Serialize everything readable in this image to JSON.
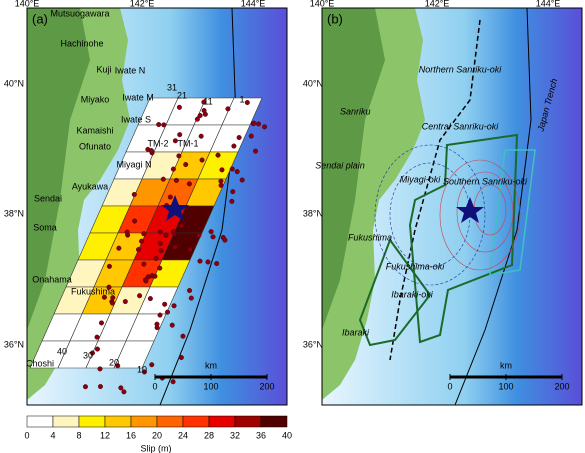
{
  "panel_a": {
    "label": "(a)",
    "lon_ticks": [
      "140°E",
      "142°E",
      "144°E"
    ],
    "lat_ticks": [
      "40°N",
      "38°N",
      "36°N"
    ],
    "places": [
      "Mutsuogawara",
      "Hachinohe",
      "Kuji",
      "Iwate N",
      "Miyako",
      "Iwate M",
      "Kamaishi",
      "Iwate S",
      "Ofunato",
      "Miyagi N",
      "TM-2",
      "TM-1",
      "Ayukawa",
      "Sendai",
      "Soma",
      "Onahama",
      "Fukushima",
      "Choshi"
    ],
    "subfault_numbers": [
      "31",
      "21",
      "11",
      "1",
      "40",
      "30",
      "20",
      "10"
    ],
    "slip_m": [
      [
        0,
        0,
        0,
        0
      ],
      [
        0,
        0,
        0,
        0
      ],
      [
        0,
        4,
        12,
        10
      ],
      [
        4,
        18,
        22,
        14
      ],
      [
        10,
        26,
        30,
        40
      ],
      [
        8,
        14,
        30,
        40
      ],
      [
        4,
        12,
        24,
        10
      ],
      [
        4,
        14,
        6,
        0
      ],
      [
        2,
        2,
        0,
        0
      ],
      [
        2,
        2,
        0,
        0
      ]
    ],
    "scale": {
      "unit": "km",
      "ticks": [
        0,
        100,
        200
      ]
    }
  },
  "panel_b": {
    "label": "(b)",
    "lon_ticks": [
      "140°E",
      "142°E",
      "144°E"
    ],
    "lat_ticks": [
      "40°N",
      "38°N",
      "36°N"
    ],
    "regions": [
      "Northern Sanriku-oki",
      "Sanriku",
      "Central Sanriku-oki",
      "Sendai plain",
      "Miyagi-oki",
      "Southern Sanriku-oki",
      "Japan Trench",
      "Fukushima",
      "Fukushima-oki",
      "Ibaraki-oki",
      "Ibaraki"
    ],
    "scale": {
      "unit": "km",
      "ticks": [
        0,
        100,
        200
      ]
    }
  },
  "colorbar": {
    "label": "Slip (m)",
    "ticks": [
      0,
      4,
      8,
      12,
      16,
      20,
      24,
      28,
      32,
      36,
      40
    ],
    "colors": [
      "#ffffff",
      "#fff5bf",
      "#fff000",
      "#ffc800",
      "#ff9600",
      "#ff6400",
      "#ff3200",
      "#e60000",
      "#a00000",
      "#500000"
    ]
  }
}
